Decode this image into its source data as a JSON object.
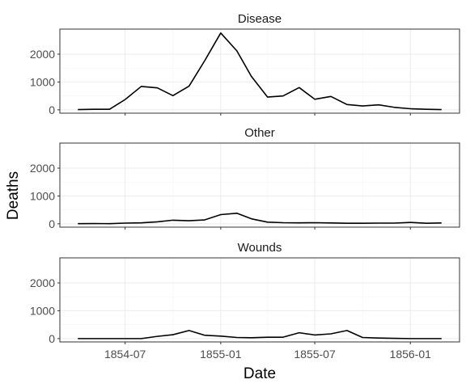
{
  "chart_data": {
    "type": "line",
    "xlabel": "Date",
    "ylabel": "Deaths",
    "facet_by": "cause",
    "ylim": [
      -120,
      2900
    ],
    "y_ticks": [
      0,
      1000,
      2000
    ],
    "x_range": [
      "1854-04-01",
      "1856-03-01"
    ],
    "x_ticks": [
      "1854-07",
      "1855-01",
      "1855-07",
      "1856-01"
    ],
    "x": [
      "1854-04-01",
      "1854-05-01",
      "1854-06-01",
      "1854-07-01",
      "1854-08-01",
      "1854-09-01",
      "1854-10-01",
      "1854-11-01",
      "1854-12-01",
      "1855-01-01",
      "1855-02-01",
      "1855-03-01",
      "1855-04-01",
      "1855-05-01",
      "1855-06-01",
      "1855-07-01",
      "1855-08-01",
      "1855-09-01",
      "1855-10-01",
      "1855-11-01",
      "1855-12-01",
      "1856-01-01",
      "1856-02-01",
      "1856-03-01"
    ],
    "grid": true,
    "series": [
      {
        "name": "Disease",
        "color": "#000000",
        "values": [
          10,
          20,
          20,
          370,
          840,
          790,
          510,
          850,
          1760,
          2760,
          2120,
          1200,
          460,
          500,
          800,
          380,
          480,
          190,
          140,
          180,
          90,
          40,
          20,
          10
        ]
      },
      {
        "name": "Other",
        "color": "#000000",
        "values": [
          5,
          10,
          5,
          25,
          35,
          70,
          130,
          110,
          140,
          330,
          380,
          180,
          60,
          40,
          35,
          40,
          30,
          20,
          20,
          25,
          25,
          50,
          20,
          30
        ]
      },
      {
        "name": "Wounds",
        "color": "#000000",
        "values": [
          0,
          0,
          0,
          0,
          0,
          80,
          140,
          290,
          120,
          90,
          40,
          30,
          50,
          50,
          210,
          130,
          170,
          290,
          40,
          20,
          10,
          0,
          0,
          0
        ]
      }
    ]
  }
}
